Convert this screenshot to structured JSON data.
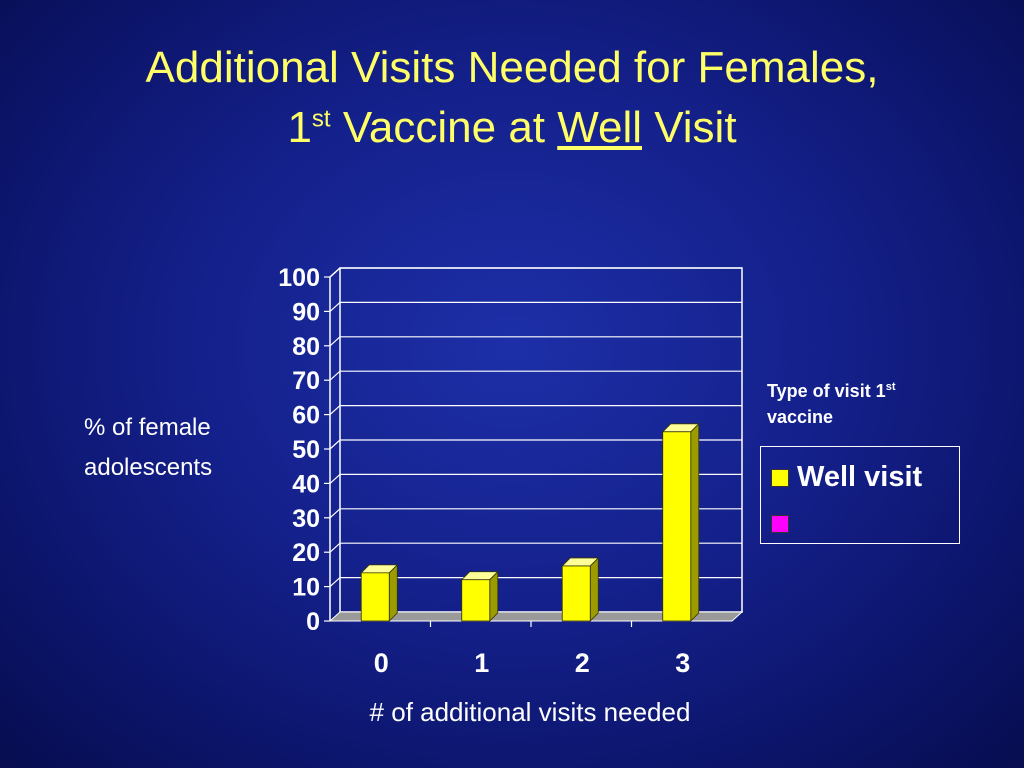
{
  "slide": {
    "title_line1": "Additional Visits Needed for Females,",
    "title_line2_prefix": "1",
    "title_line2_sup": "st",
    "title_line2_mid": " Vaccine at ",
    "title_line2_underlined": "Well",
    "title_line2_suffix": " Visit"
  },
  "colors": {
    "title": "#ffff66",
    "bar": "#ffff00",
    "bar_side": "#9c9c00",
    "series2": "#ff00ff",
    "text": "#ffffff"
  },
  "chart_data": {
    "type": "bar",
    "categories": [
      "0",
      "1",
      "2",
      "3"
    ],
    "series": [
      {
        "name": "Well visit",
        "values": [
          14,
          12,
          16,
          55
        ]
      }
    ],
    "ylim": [
      0,
      100
    ],
    "yticks": [
      "0",
      "10",
      "20",
      "30",
      "40",
      "50",
      "60",
      "70",
      "80",
      "90",
      "100"
    ],
    "ylabel_line1": "% of female",
    "ylabel_line2": "adolescents",
    "xlabel": "# of additional visits needed",
    "grid": true,
    "legend": {
      "placement": "right",
      "title_prefix": "Type of visit 1",
      "title_sup": "st",
      "title_suffix": "vaccine",
      "entries": [
        {
          "label": "Well visit",
          "color": "#ffff00"
        },
        {
          "label": "",
          "color": "#ff00ff"
        }
      ]
    }
  }
}
